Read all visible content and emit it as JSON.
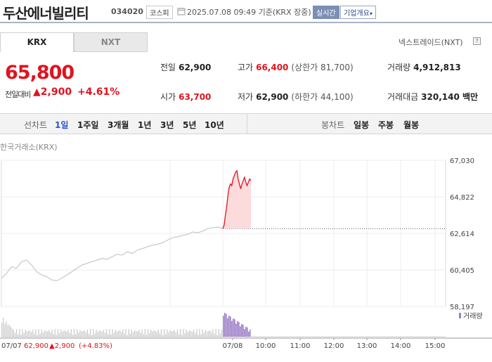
{
  "header": {
    "stock_name": "두산에너빌리티",
    "stock_code": "034020",
    "market": "코스피",
    "time": "2025.07.08 09:49 기준(KRX 장중)",
    "realtime": "실시간",
    "overview_button": "기업개요",
    "icons": [
      "clock-icon",
      "chevron-down-icon"
    ]
  },
  "tabs": [
    "KRX",
    "NXT"
  ],
  "nxt_trade_label": "넥스트레이드(NXT)",
  "price": {
    "current": "65,800",
    "diff_label": "전일대비",
    "diff_value": "2,900",
    "diff_rate": "+4.61%"
  },
  "stats": {
    "prev_label": "전일",
    "prev_value": "62,900",
    "high_label": "고가",
    "high_value": "66,400",
    "high_sub": "(상한가 81,700)",
    "volume_label": "거래량",
    "volume_value": "4,912,813",
    "open_label": "시가",
    "open_value": "63,700",
    "low_label": "저가",
    "low_value": "62,900",
    "low_sub": "(하한가 44,100)",
    "amount_label": "거래대금",
    "amount_value": "320,140 백만"
  },
  "periods": {
    "line_label": "선차트",
    "line_items": [
      "1일",
      "1주일",
      "3개월",
      "1년",
      "3년",
      "5년",
      "10년"
    ],
    "active": "1일",
    "candle_label": "봉차트",
    "candle_items": [
      "일봉",
      "주봉",
      "월봉"
    ]
  },
  "chart_meta": {
    "exchange_label": "한국거래소(KRX)",
    "volume_legend": "거래량",
    "bottom_date_prev": "07/07",
    "bottom_prev_close": "62,900",
    "bottom_prev_diff": "▲2,900",
    "bottom_prev_rate": "(+4.83%)",
    "colors": {
      "up": "#e0141e",
      "prev_day_line": "#c8c8c8",
      "volume_prev": "#c8c8c8",
      "volume_today": "#9c7ec9"
    }
  },
  "chart_data": {
    "type": "line",
    "y_ticks": [
      "67,030",
      "64,822",
      "62,614",
      "60,405",
      "58,197"
    ],
    "ylim": [
      58197,
      67030
    ],
    "reference_line": 62900,
    "x_ticks": [
      "07/08",
      "10:00",
      "11:00",
      "12:00",
      "13:00",
      "14:00",
      "15:00"
    ],
    "series": [
      {
        "values": [
          59900,
          60200,
          60600,
          60500,
          60900,
          61000,
          60700,
          60300,
          60100,
          60000,
          59800,
          59750,
          59900,
          60100,
          60300,
          60500,
          60700,
          60800,
          60900,
          61000,
          61100,
          61050,
          61200,
          61350,
          61300,
          61500,
          61400,
          61600,
          61700,
          61800,
          61900,
          61950,
          62050,
          62200,
          62350,
          62400,
          62500,
          62550,
          62700,
          62650,
          62750,
          62900,
          62950,
          63000,
          62900
        ]
      },
      {
        "values": [
          62900,
          63100,
          63700,
          64200,
          64900,
          65400,
          65600,
          65500,
          65900,
          66100,
          66300,
          66400,
          65900,
          65600,
          65300,
          65600,
          65800,
          66000,
          65700,
          65500,
          65700,
          65900,
          65800
        ]
      }
    ]
  }
}
